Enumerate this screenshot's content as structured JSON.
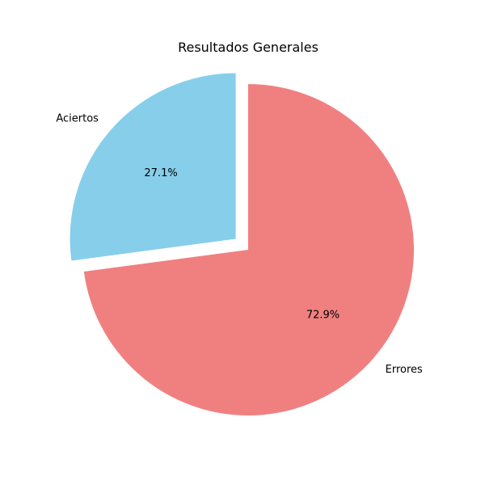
{
  "chart_data": {
    "type": "pie",
    "title": "Resultados Generales",
    "slices": [
      {
        "label": "Aciertos",
        "value": 27.1,
        "pct_label": "27.1%",
        "color": "#87ceeb",
        "exploded": true
      },
      {
        "label": "Errores",
        "value": 72.9,
        "pct_label": "72.9%",
        "color": "#f08080",
        "exploded": false
      }
    ],
    "start_angle_deg": 90,
    "direction": "counterclockwise",
    "legend": "none"
  }
}
